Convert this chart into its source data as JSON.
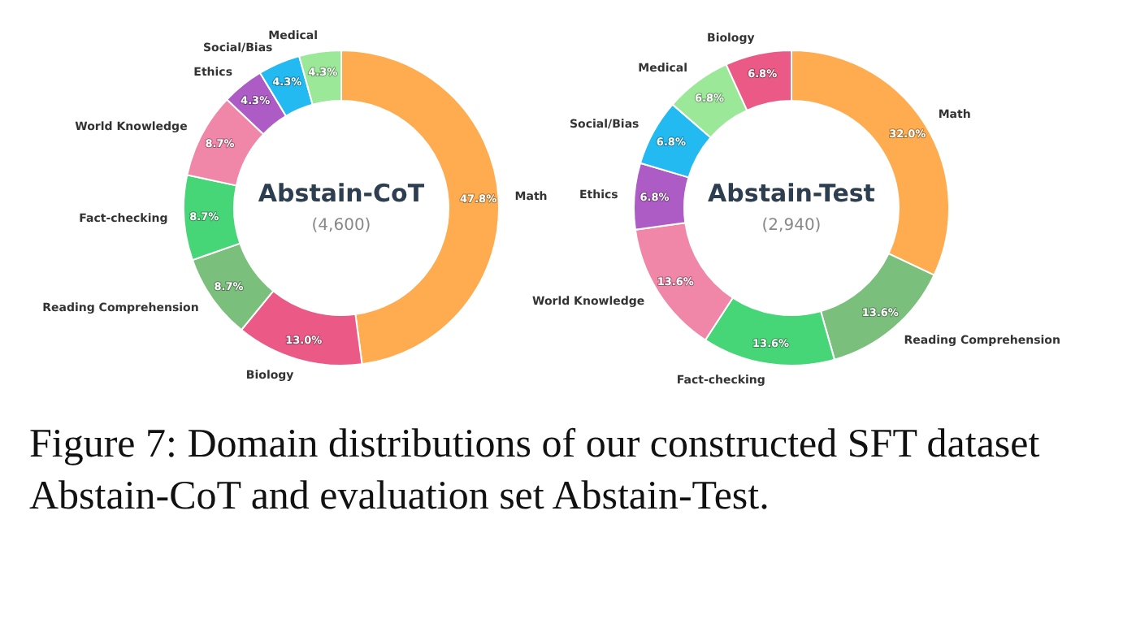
{
  "chart_data": [
    {
      "type": "donut",
      "title": "Abstain-CoT",
      "subtitle": "(4,600)",
      "categories": [
        "Math",
        "Biology",
        "Reading Comprehension",
        "Fact-checking",
        "World Knowledge",
        "Ethics",
        "Social/Bias",
        "Medical"
      ],
      "values": [
        47.8,
        13.0,
        8.7,
        8.7,
        8.7,
        4.3,
        4.3,
        4.3
      ],
      "value_labels": [
        "47.8%",
        "13.0%",
        "8.7%",
        "8.7%",
        "8.7%",
        "4.3%",
        "4.3%",
        "4.3%"
      ],
      "colors": [
        "#ffab4f",
        "#eb5a87",
        "#7bbf7c",
        "#47d677",
        "#f086a8",
        "#ac5cc4",
        "#22baf0",
        "#9be898"
      ],
      "annotations": [
        "Figure 7: Domain distributions of our constructed SFT dataset Abstain-CoT and evaluation set Abstain-Test."
      ],
      "legend": false
    },
    {
      "type": "donut",
      "title": "Abstain-Test",
      "subtitle": "(2,940)",
      "categories": [
        "Math",
        "Reading Comprehension",
        "Fact-checking",
        "World Knowledge",
        "Ethics",
        "Social/Bias",
        "Medical",
        "Biology"
      ],
      "values": [
        32.0,
        13.6,
        13.6,
        13.6,
        6.8,
        6.8,
        6.8,
        6.8
      ],
      "value_labels": [
        "32.0%",
        "13.6%",
        "13.6%",
        "13.6%",
        "6.8%",
        "6.8%",
        "6.8%",
        "6.8%"
      ],
      "colors": [
        "#ffab4f",
        "#7bbf7c",
        "#47d677",
        "#f086a8",
        "#ac5cc4",
        "#22baf0",
        "#9be898",
        "#eb5a87"
      ],
      "legend": false
    }
  ]
}
